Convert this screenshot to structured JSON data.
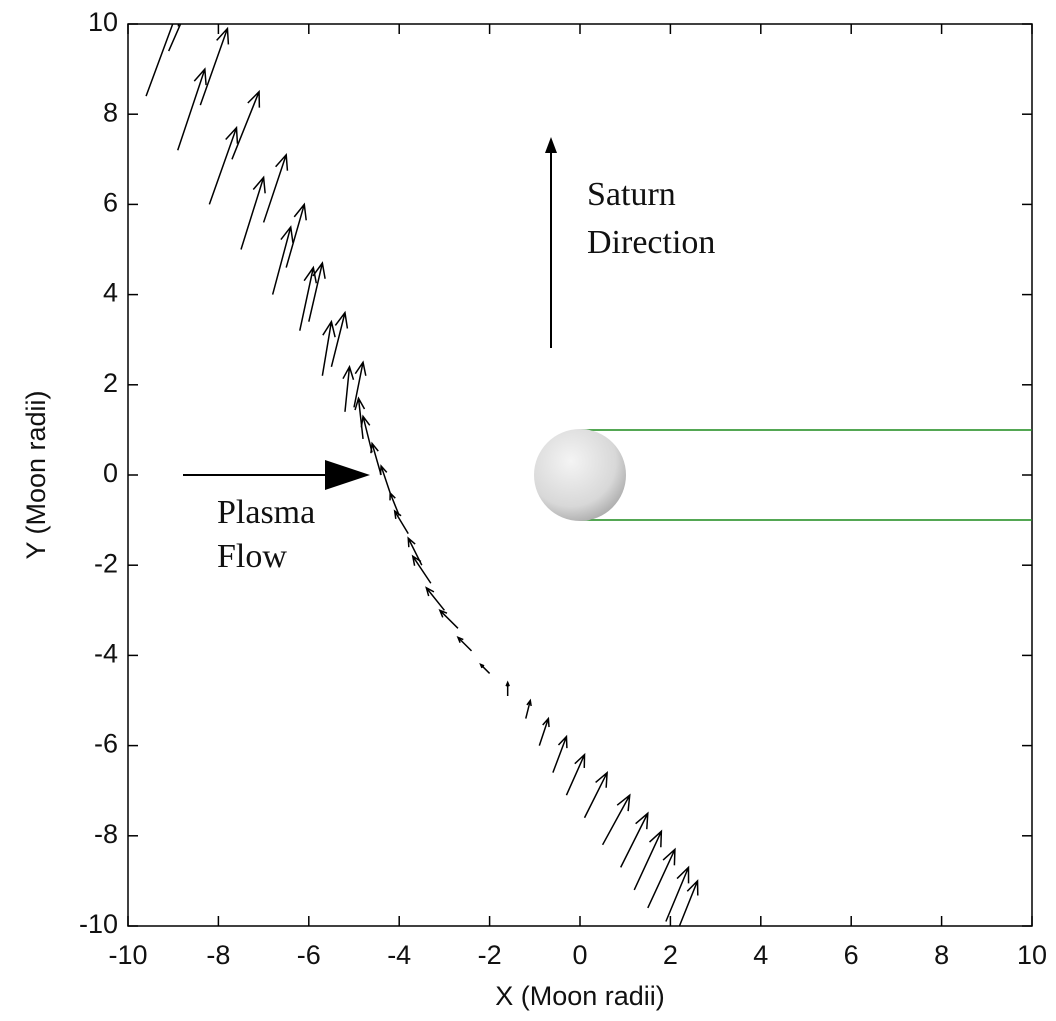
{
  "chart_data": {
    "type": "quiver",
    "xlabel": "X (Moon radii)",
    "ylabel": "Y (Moon radii)",
    "xlim": [
      -10,
      10
    ],
    "ylim": [
      -10,
      10
    ],
    "xticks": [
      -10,
      -8,
      -6,
      -4,
      -2,
      0,
      2,
      4,
      6,
      8,
      10
    ],
    "yticks": [
      -10,
      -8,
      -6,
      -4,
      -2,
      0,
      2,
      4,
      6,
      8,
      10
    ],
    "color": "#000000",
    "x": [
      -9.6,
      -9.1,
      -8.9,
      -8.4,
      -8.2,
      -7.7,
      -7.5,
      -7.0,
      -6.8,
      -6.5,
      -6.2,
      -6.0,
      -5.7,
      -5.5,
      -5.2,
      -5.0,
      -4.8,
      -4.6,
      -4.4,
      -4.2,
      -4.0,
      -3.8,
      -3.5,
      -3.3,
      -3.0,
      -2.7,
      -2.4,
      -2.0,
      -1.6,
      -1.2,
      -0.9,
      -0.6,
      -0.3,
      0.1,
      0.5,
      0.9,
      1.2,
      1.5,
      1.9,
      2.2
    ],
    "y": [
      8.4,
      9.4,
      7.2,
      8.2,
      6.0,
      7.0,
      5.0,
      5.6,
      4.0,
      4.6,
      3.2,
      3.4,
      2.2,
      2.4,
      1.4,
      1.5,
      0.8,
      0.5,
      0.0,
      -0.4,
      -0.9,
      -1.3,
      -2.0,
      -2.4,
      -3.0,
      -3.4,
      -3.9,
      -4.4,
      -4.9,
      -5.4,
      -6.0,
      -6.6,
      -7.1,
      -7.6,
      -8.2,
      -8.7,
      -9.2,
      -9.6,
      -9.9,
      -10.0
    ],
    "u": [
      0.7,
      0.7,
      0.6,
      0.6,
      0.6,
      0.6,
      0.5,
      0.5,
      0.4,
      0.4,
      0.3,
      0.3,
      0.2,
      0.3,
      0.1,
      0.2,
      -0.1,
      -0.2,
      -0.2,
      -0.2,
      -0.2,
      -0.3,
      -0.3,
      -0.4,
      -0.4,
      -0.4,
      -0.3,
      -0.2,
      0.0,
      0.1,
      0.2,
      0.3,
      0.4,
      0.5,
      0.6,
      0.6,
      0.6,
      0.6,
      0.5,
      0.4
    ],
    "v": [
      1.9,
      1.6,
      1.8,
      1.7,
      1.7,
      1.5,
      1.6,
      1.5,
      1.5,
      1.4,
      1.4,
      1.3,
      1.2,
      1.2,
      1.0,
      1.0,
      0.9,
      0.8,
      0.7,
      0.6,
      0.5,
      0.5,
      0.6,
      0.6,
      0.5,
      0.4,
      0.3,
      0.2,
      0.3,
      0.4,
      0.6,
      0.8,
      0.9,
      1.0,
      1.1,
      1.2,
      1.3,
      1.3,
      1.2,
      1.0
    ],
    "annotations": [
      {
        "lines": [
          "Saturn",
          "Direction"
        ]
      },
      {
        "lines": [
          "Plasma",
          "Flow"
        ]
      }
    ]
  }
}
